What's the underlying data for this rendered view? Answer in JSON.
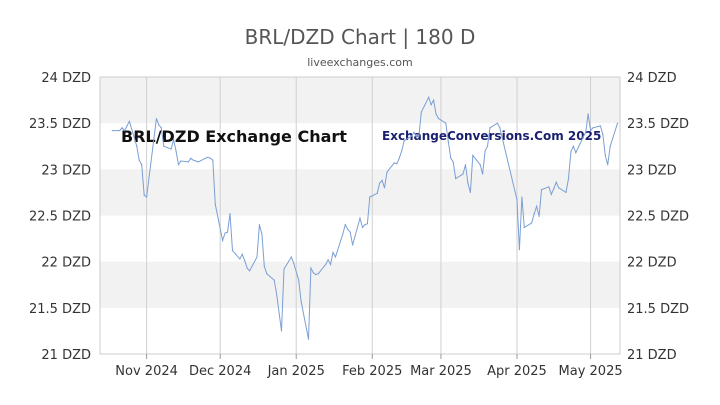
{
  "title": "BRL/DZD Chart | 180 D",
  "subtitle": "liveexchanges.com",
  "colors": {
    "line": "#7b9fd4",
    "band": "#f2f2f2",
    "grid": "#d0d0d0",
    "watermark_right": "#1a1f6e"
  },
  "chart_data": {
    "type": "line",
    "title": "BRL/DZD Chart | 180 D",
    "xlabel": "",
    "ylabel": "",
    "ylim": [
      21,
      24
    ],
    "y_ticks": [
      "24 DZD",
      "23.5 DZD",
      "23 DZD",
      "22.5 DZD",
      "22 DZD",
      "21.5 DZD",
      "21 DZD"
    ],
    "y_tick_values": [
      24,
      23.5,
      23,
      22.5,
      22,
      21.5,
      21
    ],
    "x_ticks": [
      "Nov 2024",
      "Dec 2024",
      "Jan 2025",
      "Feb 2025",
      "Mar 2025",
      "Apr 2025",
      "May 2025"
    ],
    "x_tick_dates": [
      "2024-11-01",
      "2024-12-01",
      "2025-01-01",
      "2025-02-01",
      "2025-03-01",
      "2025-04-01",
      "2025-05-01"
    ],
    "xlim": [
      "2024-10-13",
      "2025-05-13"
    ],
    "grid": true,
    "annotations": [
      "BRL/DZD Exchange Chart",
      "ExchangeConversions.Com 2025"
    ],
    "series": [
      {
        "x": [
          "2024-10-18",
          "2024-10-21",
          "2024-10-22",
          "2024-10-23",
          "2024-10-24",
          "2024-10-25",
          "2024-10-28",
          "2024-10-29",
          "2024-10-30",
          "2024-10-31",
          "2024-11-01",
          "2024-11-04",
          "2024-11-05",
          "2024-11-06",
          "2024-11-07",
          "2024-11-08",
          "2024-11-11",
          "2024-11-12",
          "2024-11-13",
          "2024-11-14",
          "2024-11-15",
          "2024-11-18",
          "2024-11-19",
          "2024-11-20",
          "2024-11-21",
          "2024-11-22",
          "2024-11-25",
          "2024-11-26",
          "2024-11-27",
          "2024-11-28",
          "2024-11-29",
          "2024-12-02",
          "2024-12-03",
          "2024-12-04",
          "2024-12-05",
          "2024-12-06",
          "2024-12-09",
          "2024-12-10",
          "2024-12-11",
          "2024-12-12",
          "2024-12-13",
          "2024-12-16",
          "2024-12-17",
          "2024-12-18",
          "2024-12-19",
          "2024-12-20",
          "2024-12-23",
          "2024-12-24",
          "2024-12-26",
          "2024-12-27",
          "2024-12-30",
          "2024-12-31",
          "2025-01-02",
          "2025-01-03",
          "2025-01-06",
          "2025-01-07",
          "2025-01-08",
          "2025-01-09",
          "2025-01-10",
          "2025-01-13",
          "2025-01-14",
          "2025-01-15",
          "2025-01-16",
          "2025-01-17",
          "2025-01-20",
          "2025-01-21",
          "2025-01-22",
          "2025-01-23",
          "2025-01-24",
          "2025-01-27",
          "2025-01-28",
          "2025-01-29",
          "2025-01-30",
          "2025-01-31",
          "2025-02-03",
          "2025-02-04",
          "2025-02-05",
          "2025-02-06",
          "2025-02-07",
          "2025-02-10",
          "2025-02-11",
          "2025-02-12",
          "2025-02-13",
          "2025-02-14",
          "2025-02-17",
          "2025-02-18",
          "2025-02-19",
          "2025-02-20",
          "2025-02-21",
          "2025-02-24",
          "2025-02-25",
          "2025-02-26",
          "2025-02-27",
          "2025-02-28",
          "2025-03-03",
          "2025-03-04",
          "2025-03-05",
          "2025-03-06",
          "2025-03-07",
          "2025-03-10",
          "2025-03-11",
          "2025-03-12",
          "2025-03-13",
          "2025-03-14",
          "2025-03-17",
          "2025-03-18",
          "2025-03-19",
          "2025-03-20",
          "2025-03-21",
          "2025-03-24",
          "2025-03-25",
          "2025-04-01",
          "2025-04-02",
          "2025-04-03",
          "2025-04-04",
          "2025-04-07",
          "2025-04-08",
          "2025-04-09",
          "2025-04-10",
          "2025-04-11",
          "2025-04-14",
          "2025-04-15",
          "2025-04-16",
          "2025-04-17",
          "2025-04-18",
          "2025-04-21",
          "2025-04-22",
          "2025-04-23",
          "2025-04-24",
          "2025-04-25",
          "2025-04-28",
          "2025-04-29",
          "2025-04-30",
          "2025-05-01",
          "2025-05-02",
          "2025-05-05",
          "2025-05-06",
          "2025-05-07",
          "2025-05-08",
          "2025-05-09",
          "2025-05-12"
        ],
        "values": [
          23.42,
          23.42,
          23.45,
          23.42,
          23.47,
          23.52,
          23.25,
          23.1,
          23.05,
          22.72,
          22.7,
          23.34,
          23.55,
          23.48,
          23.45,
          23.25,
          23.22,
          23.32,
          23.2,
          23.05,
          23.09,
          23.08,
          23.12,
          23.1,
          23.09,
          23.08,
          23.12,
          23.13,
          23.12,
          23.1,
          22.62,
          22.23,
          22.31,
          22.32,
          22.52,
          22.12,
          22.03,
          22.08,
          22.01,
          21.93,
          21.9,
          22.05,
          22.4,
          22.3,
          21.95,
          21.87,
          21.8,
          21.65,
          21.25,
          21.92,
          22.05,
          21.98,
          21.8,
          21.57,
          21.16,
          21.93,
          21.88,
          21.86,
          21.87,
          21.97,
          22.02,
          21.97,
          22.1,
          22.05,
          22.3,
          22.4,
          22.35,
          22.32,
          22.18,
          22.47,
          22.37,
          22.4,
          22.41,
          22.7,
          22.74,
          22.85,
          22.88,
          22.8,
          22.97,
          23.07,
          23.06,
          23.12,
          23.2,
          23.31,
          23.36,
          23.4,
          23.35,
          23.36,
          23.62,
          23.78,
          23.7,
          23.75,
          23.6,
          23.55,
          23.5,
          23.3,
          23.12,
          23.08,
          22.9,
          22.95,
          23.05,
          22.85,
          22.75,
          23.15,
          23.05,
          22.95,
          23.2,
          23.25,
          23.45,
          23.5,
          23.45,
          22.67,
          22.13,
          22.7,
          22.37,
          22.42,
          22.52,
          22.6,
          22.49,
          22.78,
          22.81,
          22.73,
          22.79,
          22.86,
          22.8,
          22.75,
          22.9,
          23.19,
          23.25,
          23.18,
          23.35,
          23.4,
          23.6,
          23.42,
          23.45,
          23.47,
          23.38,
          23.15,
          23.05,
          23.25,
          23.5
        ]
      }
    ]
  }
}
